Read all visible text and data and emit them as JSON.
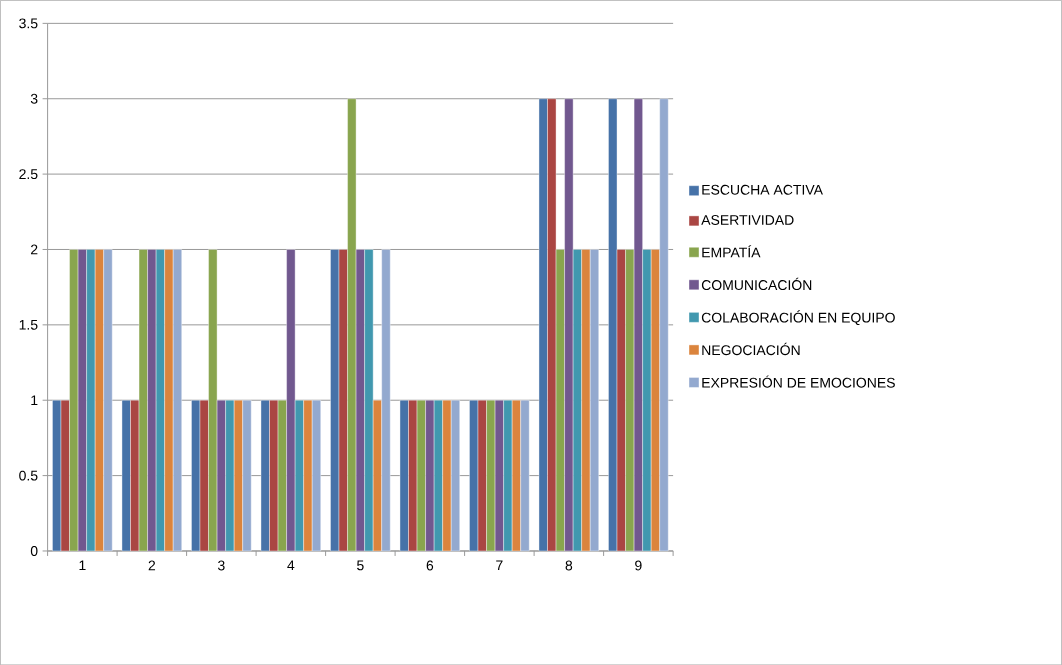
{
  "chart_data": {
    "type": "bar",
    "categories": [
      "1",
      "2",
      "3",
      "4",
      "5",
      "6",
      "7",
      "8",
      "9"
    ],
    "series": [
      {
        "name": "ESCUCHA ACTIVA",
        "color": "#4672a8",
        "values": [
          1,
          1,
          1,
          1,
          2,
          1,
          1,
          3,
          3
        ]
      },
      {
        "name": "ASERTIVIDAD",
        "color": "#aa4643",
        "values": [
          1,
          1,
          1,
          1,
          2,
          1,
          1,
          3,
          2
        ]
      },
      {
        "name": "EMPATÍA",
        "color": "#89a54e",
        "values": [
          2,
          2,
          2,
          1,
          3,
          1,
          1,
          2,
          2
        ]
      },
      {
        "name": "COMUNICACIÓN",
        "color": "#71588f",
        "values": [
          2,
          2,
          1,
          2,
          2,
          1,
          1,
          3,
          3
        ]
      },
      {
        "name": "COLABORACIÓN EN EQUIPO",
        "color": "#4198af",
        "values": [
          2,
          2,
          1,
          1,
          2,
          1,
          1,
          2,
          2
        ]
      },
      {
        "name": "NEGOCIACIÓN",
        "color": "#db843d",
        "values": [
          2,
          2,
          1,
          1,
          1,
          1,
          1,
          2,
          2
        ]
      },
      {
        "name": "EXPRESIÓN DE EMOCIONES",
        "color": "#93a9cf",
        "values": [
          2,
          2,
          1,
          1,
          2,
          1,
          1,
          2,
          3
        ]
      }
    ],
    "ylim": [
      0,
      3.5
    ],
    "yticks": [
      0,
      0.5,
      1,
      1.5,
      2,
      2.5,
      3,
      3.5
    ],
    "grid": "y",
    "legend": "right"
  }
}
